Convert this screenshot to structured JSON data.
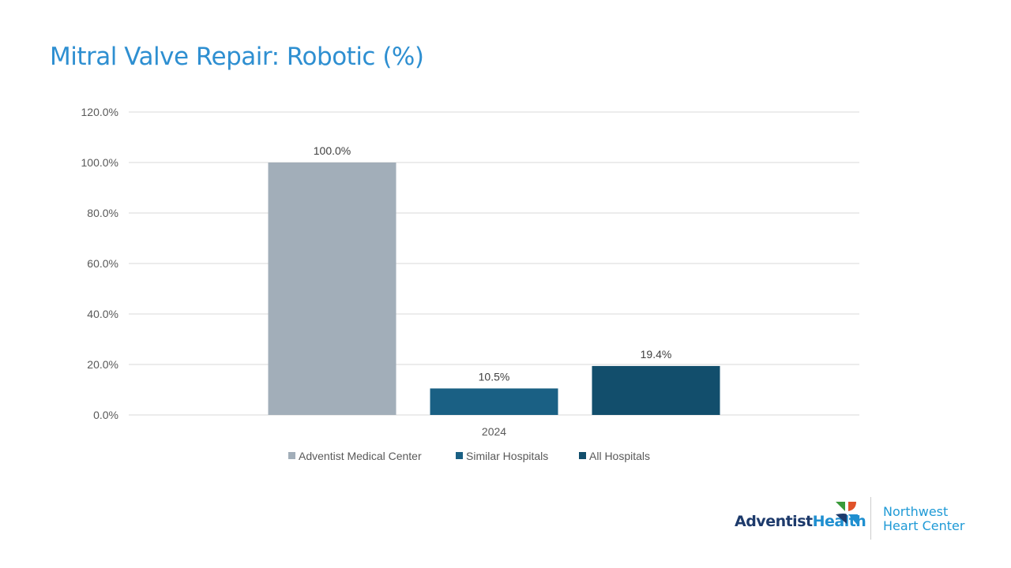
{
  "title": "Mitral Valve Repair: Robotic (%)",
  "chart_data": {
    "type": "bar",
    "categories": [
      "2024"
    ],
    "series": [
      {
        "name": "Adventist Medical Center",
        "values": [
          100.0
        ],
        "color": "#a2aeb9",
        "label": "100.0%"
      },
      {
        "name": "Similar Hospitals",
        "values": [
          10.5
        ],
        "color": "#1a6084",
        "label": "10.5%"
      },
      {
        "name": "All Hospitals",
        "values": [
          19.4
        ],
        "color": "#124e6c",
        "label": "19.4%"
      }
    ],
    "ylim": [
      0,
      120
    ],
    "yticks": [
      "0.0%",
      "20.0%",
      "40.0%",
      "60.0%",
      "80.0%",
      "100.0%",
      "120.0%"
    ],
    "grid": true,
    "legend": "bottom"
  },
  "logo": {
    "brand_part1": "Adventist",
    "brand_part2": "Health",
    "sub_line1": "Northwest",
    "sub_line2": "Heart Center"
  }
}
